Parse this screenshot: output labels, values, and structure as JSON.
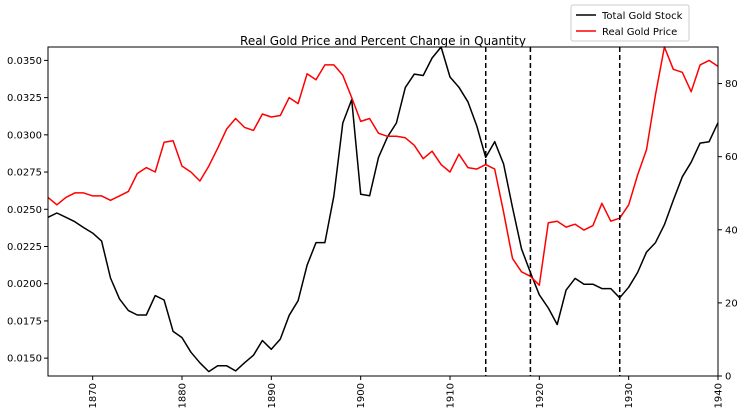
{
  "chart_data": {
    "type": "line",
    "title": "Real Gold Price and Percent Change in Quantity",
    "x_range": [
      1865,
      1940
    ],
    "x_ticks": [
      1870,
      1880,
      1890,
      1900,
      1910,
      1920,
      1930,
      1940
    ],
    "y_left": {
      "range": [
        0.0138,
        0.0359
      ],
      "ticks": [
        0.015,
        0.0175,
        0.02,
        0.0225,
        0.025,
        0.0275,
        0.03,
        0.0325,
        0.035
      ],
      "tick_labels": [
        "0.0150",
        "0.0175",
        "0.0200",
        "0.0225",
        "0.0250",
        "0.0275",
        "0.0300",
        "0.0325",
        "0.0350"
      ]
    },
    "y_right": {
      "range": [
        0,
        90
      ],
      "ticks": [
        0,
        20,
        40,
        60,
        80
      ],
      "tick_labels": [
        "0",
        "20",
        "40",
        "60",
        "80"
      ]
    },
    "vlines": [
      1914,
      1919,
      1929
    ],
    "legend_position": "upper-right-outside",
    "series": [
      {
        "name": "Total Gold Stock",
        "color": "#000000",
        "axis": "right",
        "x": [
          1865,
          1866,
          1867,
          1868,
          1869,
          1870,
          1871,
          1872,
          1873,
          1874,
          1875,
          1876,
          1877,
          1878,
          1879,
          1880,
          1881,
          1882,
          1883,
          1884,
          1885,
          1886,
          1887,
          1888,
          1889,
          1890,
          1891,
          1892,
          1893,
          1894,
          1895,
          1896,
          1897,
          1898,
          1899,
          1900,
          1901,
          1902,
          1903,
          1904,
          1905,
          1906,
          1907,
          1908,
          1909,
          1910,
          1911,
          1912,
          1913,
          1914,
          1915,
          1916,
          1917,
          1918,
          1919,
          1920,
          1921,
          1922,
          1923,
          1924,
          1925,
          1926,
          1927,
          1928,
          1929,
          1930,
          1931,
          1932,
          1933,
          1934,
          1935,
          1936,
          1937,
          1938,
          1939,
          1940
        ],
        "values": [
          43.4,
          44.6,
          43.4,
          42.2,
          40.6,
          39.1,
          36.9,
          26.8,
          21.1,
          17.9,
          16.7,
          16.7,
          22.0,
          20.8,
          12.2,
          10.5,
          6.5,
          3.6,
          1.2,
          2.8,
          2.8,
          1.4,
          3.6,
          5.7,
          9.7,
          7.3,
          10.1,
          16.6,
          20.6,
          30.3,
          36.5,
          36.5,
          49.3,
          69.2,
          75.6,
          49.7,
          49.3,
          59.8,
          65.4,
          69.2,
          78.9,
          82.6,
          82.2,
          87.0,
          90.2,
          81.8,
          79.0,
          75.0,
          68.4,
          59.8,
          64.1,
          58.0,
          46.1,
          34.8,
          28.3,
          22.2,
          18.6,
          14.1,
          23.5,
          26.7,
          25.1,
          25.1,
          23.9,
          23.9,
          21.4,
          24.3,
          28.3,
          33.9,
          36.5,
          41.4,
          48.1,
          54.5,
          58.5,
          63.7,
          64.1,
          69.3
        ]
      },
      {
        "name": "Real Gold Price",
        "color": "#ff0000",
        "axis": "left",
        "x": [
          1865,
          1866,
          1867,
          1868,
          1869,
          1870,
          1871,
          1872,
          1873,
          1874,
          1875,
          1876,
          1877,
          1878,
          1879,
          1880,
          1881,
          1882,
          1883,
          1884,
          1885,
          1886,
          1887,
          1888,
          1889,
          1890,
          1891,
          1892,
          1893,
          1894,
          1895,
          1896,
          1897,
          1898,
          1899,
          1900,
          1901,
          1902,
          1903,
          1904,
          1905,
          1906,
          1907,
          1908,
          1909,
          1910,
          1911,
          1912,
          1913,
          1914,
          1915,
          1916,
          1917,
          1918,
          1919,
          1920,
          1921,
          1922,
          1923,
          1924,
          1925,
          1926,
          1927,
          1928,
          1929,
          1930,
          1931,
          1932,
          1933,
          1934,
          1935,
          1936,
          1937,
          1938,
          1939,
          1940
        ],
        "values": [
          0.0258,
          0.0253,
          0.0258,
          0.0261,
          0.0261,
          0.0259,
          0.0259,
          0.0256,
          0.0259,
          0.0262,
          0.0274,
          0.0278,
          0.0275,
          0.0295,
          0.0296,
          0.0279,
          0.0275,
          0.0269,
          0.0279,
          0.0291,
          0.0304,
          0.0311,
          0.0305,
          0.0303,
          0.0314,
          0.0312,
          0.0313,
          0.0325,
          0.0321,
          0.0341,
          0.0337,
          0.0347,
          0.0347,
          0.034,
          0.0325,
          0.0309,
          0.0311,
          0.0301,
          0.0299,
          0.0299,
          0.0298,
          0.0293,
          0.0284,
          0.0289,
          0.028,
          0.0275,
          0.0287,
          0.0278,
          0.0277,
          0.028,
          0.0277,
          0.0248,
          0.0217,
          0.0208,
          0.0205,
          0.0199,
          0.0241,
          0.0242,
          0.0238,
          0.024,
          0.0236,
          0.0239,
          0.0254,
          0.0242,
          0.0244,
          0.0253,
          0.0273,
          0.029,
          0.0327,
          0.0359,
          0.0344,
          0.0342,
          0.0329,
          0.0347,
          0.035,
          0.0346
        ]
      }
    ]
  }
}
